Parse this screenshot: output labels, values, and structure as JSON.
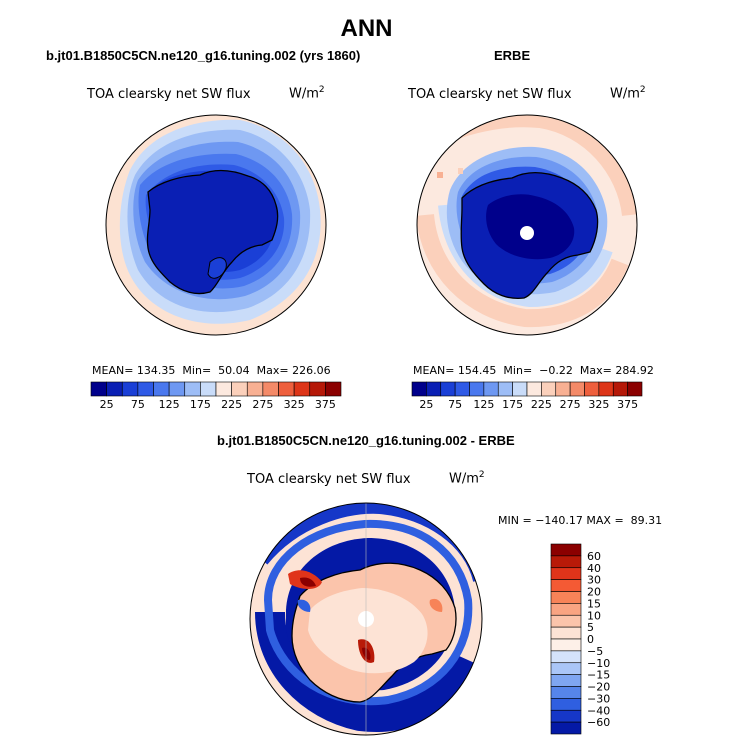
{
  "page": {
    "main_title": "ANN"
  },
  "chart_data": [
    {
      "type": "heatmap",
      "projection": "south-polar-stereographic",
      "title": "b.jt01.B1850C5CN.ne120_g16.tuning.002 (yrs 1860)",
      "variable": "TOA clearsky net SW flux",
      "units": "W/m",
      "units_sup": "2",
      "stats": {
        "mean_label": "MEAN=",
        "mean": "134.35",
        "min_label": "Min=",
        "min": "50.04",
        "max_label": "Max=",
        "max": "226.06"
      },
      "colorbar": {
        "orientation": "horizontal",
        "levels": [
          25,
          50,
          75,
          100,
          125,
          150,
          175,
          200,
          225,
          250,
          275,
          300,
          325,
          350,
          375
        ],
        "tick_labels": [
          "25",
          "75",
          "125",
          "175",
          "225",
          "275",
          "325",
          "375"
        ],
        "colors": [
          "#00008b",
          "#0a1fb4",
          "#1a3fd6",
          "#2f5ae6",
          "#4a78ee",
          "#6e98f2",
          "#9dbdf6",
          "#c9dcf9",
          "#fce9df",
          "#fbd0bb",
          "#f8b093",
          "#f48a68",
          "#ee5f3d",
          "#dd3518",
          "#b51808",
          "#8b0000"
        ]
      }
    },
    {
      "type": "heatmap",
      "projection": "south-polar-stereographic",
      "title": "ERBE",
      "variable": "TOA clearsky net SW flux",
      "units": "W/m",
      "units_sup": "2",
      "stats": {
        "mean_label": "MEAN=",
        "mean": "154.45",
        "min_label": "Min=",
        "min": "−0.22",
        "max_label": "Max=",
        "max": "284.92"
      },
      "colorbar": {
        "orientation": "horizontal",
        "levels": [
          25,
          50,
          75,
          100,
          125,
          150,
          175,
          200,
          225,
          250,
          275,
          300,
          325,
          350,
          375
        ],
        "tick_labels": [
          "25",
          "75",
          "125",
          "175",
          "225",
          "275",
          "325",
          "375"
        ],
        "colors": [
          "#00008b",
          "#0a1fb4",
          "#1a3fd6",
          "#2f5ae6",
          "#4a78ee",
          "#6e98f2",
          "#9dbdf6",
          "#c9dcf9",
          "#fce9df",
          "#fbd0bb",
          "#f8b093",
          "#f48a68",
          "#ee5f3d",
          "#dd3518",
          "#b51808",
          "#8b0000"
        ]
      }
    },
    {
      "type": "heatmap",
      "projection": "south-polar-stereographic",
      "title": "b.jt01.B1850C5CN.ne120_g16.tuning.002 - ERBE",
      "variable": "TOA clearsky net SW flux",
      "units": "W/m",
      "units_sup": "2",
      "stats": {
        "min_label": "MIN =",
        "min": "−140.17",
        "max_label": "MAX =",
        "max": "89.31"
      },
      "colorbar": {
        "orientation": "vertical",
        "tick_labels": [
          "60",
          "40",
          "30",
          "20",
          "15",
          "10",
          "5",
          "0",
          "−5",
          "−10",
          "−15",
          "−20",
          "−30",
          "−40",
          "−60"
        ],
        "colors": [
          "#8b0000",
          "#b81a08",
          "#e0341a",
          "#f45a34",
          "#f78358",
          "#f9a482",
          "#fbc4ab",
          "#fde3d5",
          "#fdf0e8",
          "#d4e3fb",
          "#aac6f7",
          "#7fa6f1",
          "#5685ea",
          "#2f5fe0",
          "#1637c8",
          "#0419a6"
        ]
      }
    }
  ]
}
